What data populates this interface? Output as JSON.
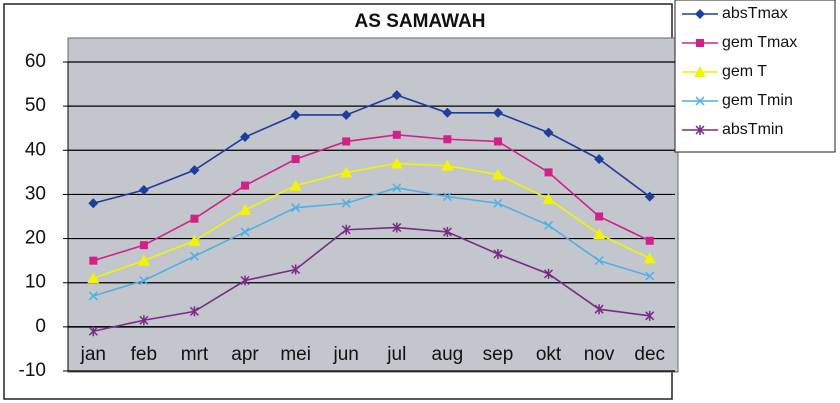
{
  "chart_data": {
    "type": "line",
    "title": "AS SAMAWAH",
    "categories": [
      "jan",
      "feb",
      "mrt",
      "apr",
      "mei",
      "jun",
      "jul",
      "aug",
      "sep",
      "okt",
      "nov",
      "dec"
    ],
    "series": [
      {
        "name": "absTmax",
        "color": "#1f3d9e",
        "marker": "diamond",
        "values": [
          28,
          31,
          35.5,
          43,
          48,
          48,
          52.5,
          48.5,
          48.5,
          44,
          38,
          29.5
        ]
      },
      {
        "name": "gem Tmax",
        "color": "#d0208c",
        "marker": "square",
        "values": [
          15,
          18.5,
          24.5,
          32,
          38,
          42,
          43.5,
          42.5,
          42,
          35,
          25,
          19.5
        ]
      },
      {
        "name": "gem T",
        "color": "#f4f400",
        "marker": "triangle",
        "values": [
          11,
          15,
          19.5,
          26.5,
          32,
          35,
          37,
          36.5,
          34.5,
          29,
          21,
          15.5
        ]
      },
      {
        "name": "gem Tmin",
        "color": "#4fb0e6",
        "marker": "x",
        "values": [
          7,
          10.5,
          16,
          21.5,
          27,
          28,
          31.5,
          29.5,
          28,
          23,
          15,
          11.5
        ]
      },
      {
        "name": "absTmin",
        "color": "#7a2a88",
        "marker": "star",
        "values": [
          -1,
          1.5,
          3.5,
          10.5,
          13,
          22,
          22.5,
          21.5,
          16.5,
          12,
          4,
          2.5
        ]
      }
    ],
    "ylim": [
      -10,
      60
    ],
    "yticks": [
      -10,
      0,
      10,
      20,
      30,
      40,
      50,
      60
    ],
    "grid": true,
    "legend": "top-right"
  }
}
